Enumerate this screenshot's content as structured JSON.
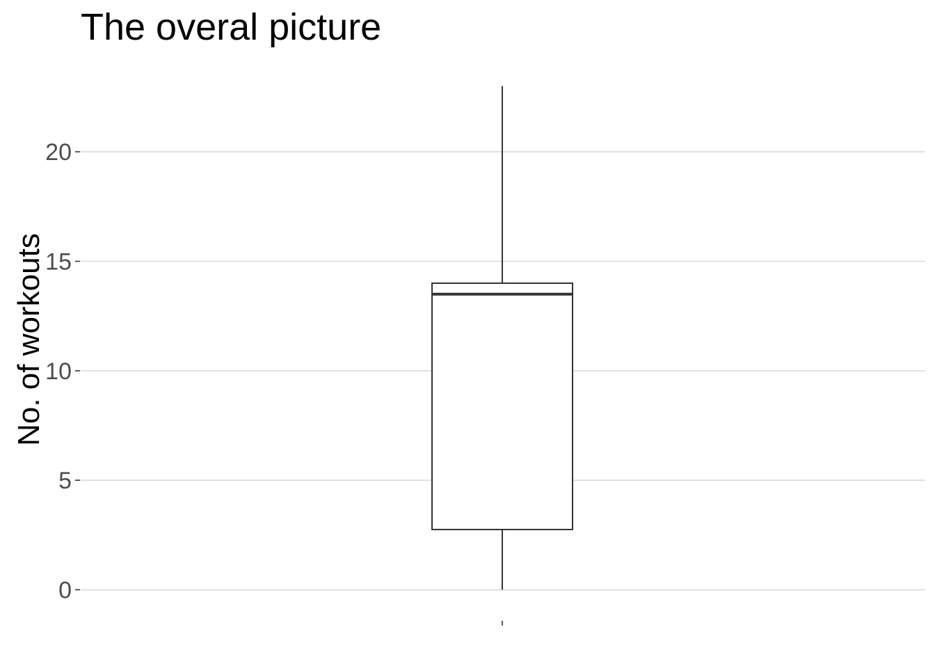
{
  "chart_data": {
    "type": "box",
    "title": "The overal picture",
    "xlabel": "",
    "ylabel": "No. of workouts",
    "x_ticks": [
      ""
    ],
    "y_ticks": [
      "0",
      "5",
      "10",
      "15",
      "20"
    ],
    "y_tick_values": [
      0,
      5,
      10,
      15,
      20
    ],
    "ylim": [
      -1.35,
      24.2
    ],
    "grid": "horizontal-major",
    "series": [
      {
        "min": 0,
        "q1": 2.75,
        "median": 13.5,
        "q3": 14,
        "max": 23
      }
    ],
    "colors": {
      "box_fill": "#ffffff",
      "box_stroke": "#333333",
      "grid": "#d9d9d9",
      "tick_label": "#4d4d4d",
      "text": "#000000"
    }
  }
}
